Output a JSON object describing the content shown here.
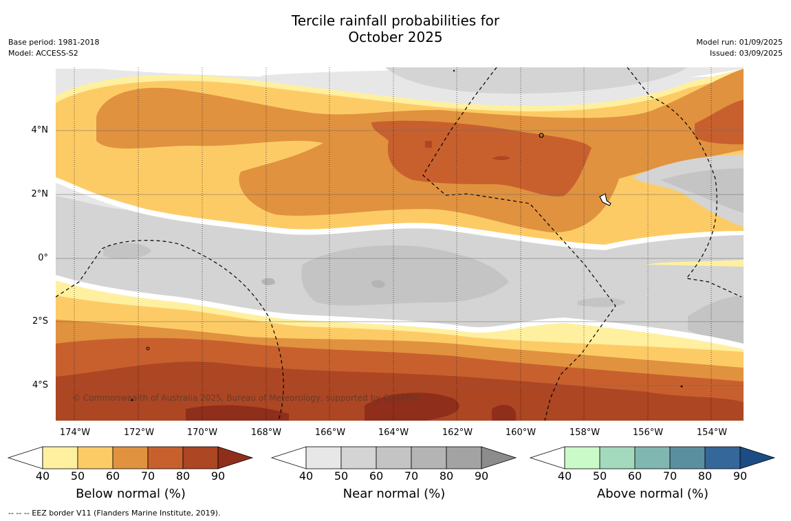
{
  "title_line1": "Tercile rainfall probabilities for",
  "title_line2": "October 2025",
  "meta_left": {
    "line1": "Base period: 1981-2018",
    "line2": "Model: ACCESS-S2"
  },
  "meta_right": {
    "line1": "Model run: 01/09/2025",
    "line2": "Issued: 03/09/2025"
  },
  "map": {
    "lat_labels": [
      "4°N",
      "2°N",
      "0°",
      "2°S",
      "4°S"
    ],
    "lon_labels": [
      "174°W",
      "172°W",
      "170°W",
      "168°W",
      "166°W",
      "164°W",
      "162°W",
      "160°W",
      "158°W",
      "156°W",
      "154°W"
    ],
    "copyright": "© Commonwealth of Australia 2025, Bureau of Meteorology, supported by COSPPac"
  },
  "colorbars": [
    {
      "title": "Below normal (%)",
      "ticks": [
        "40",
        "50",
        "60",
        "70",
        "80",
        "90"
      ],
      "colors": [
        "#fff09f",
        "#fdcb66",
        "#e0923f",
        "#c8602e",
        "#ad4623",
        "#8f2e1b"
      ]
    },
    {
      "title": "Near normal (%)",
      "ticks": [
        "40",
        "50",
        "60",
        "70",
        "80",
        "90"
      ],
      "colors": [
        "#e7e7e7",
        "#d4d4d4",
        "#c4c4c4",
        "#b4b4b4",
        "#a3a3a3",
        "#8c8c8c"
      ]
    },
    {
      "title": "Above normal (%)",
      "ticks": [
        "40",
        "50",
        "60",
        "70",
        "80",
        "90"
      ],
      "colors": [
        "#c9fac8",
        "#a3d9bd",
        "#80b7b0",
        "#5a8fa0",
        "#36679a",
        "#1b4c84"
      ]
    }
  ],
  "footer": "--  --  -- EEZ border V11 (Flanders Marine Institute, 2019)."
}
